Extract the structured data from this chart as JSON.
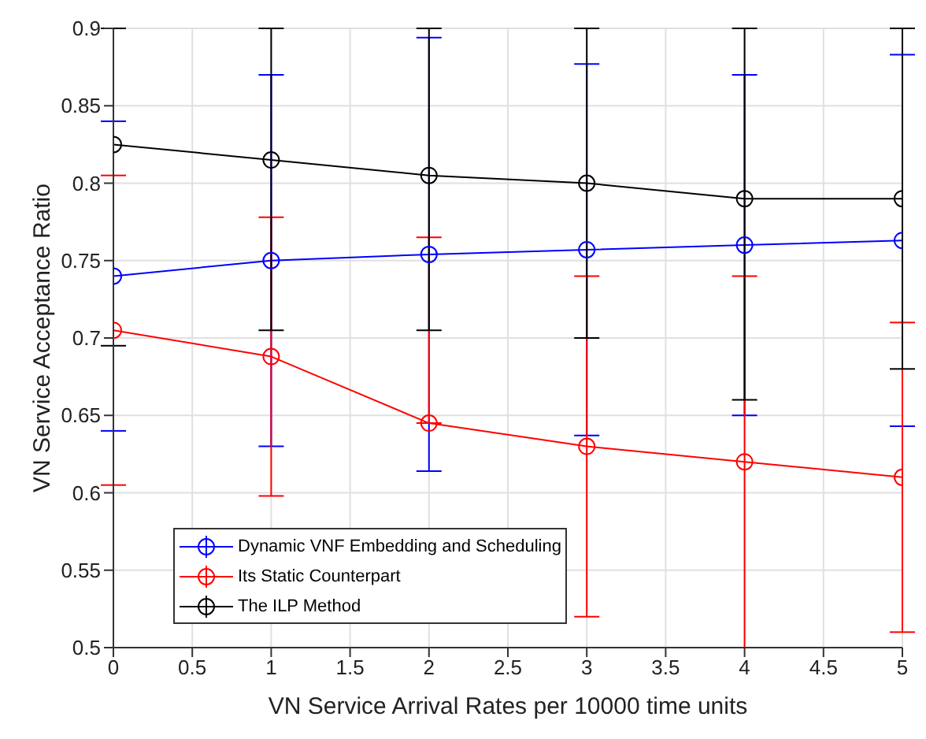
{
  "chart_data": {
    "type": "line",
    "xlabel": "VN Service Arrival Rates per 10000 time units",
    "ylabel": "VN Service Acceptance Ratio",
    "x": [
      0,
      1,
      2,
      3,
      4,
      5
    ],
    "series": [
      {
        "name": "Dynamic VNF Embedding and Scheduling",
        "color": "#0000ff",
        "values": [
          0.74,
          0.75,
          0.754,
          0.757,
          0.76,
          0.763
        ],
        "errors": [
          [
            0.64,
            0.84
          ],
          [
            0.63,
            0.87
          ],
          [
            0.614,
            0.894
          ],
          [
            0.637,
            0.877
          ],
          [
            0.65,
            0.87
          ],
          [
            0.643,
            0.883
          ]
        ]
      },
      {
        "name": "Its Static Counterpart",
        "color": "#ff0000",
        "values": [
          0.705,
          0.688,
          0.645,
          0.63,
          0.62,
          0.61
        ],
        "errors": [
          [
            0.605,
            0.805
          ],
          [
            0.598,
            0.778
          ],
          [
            0.645,
            0.765
          ],
          [
            0.52,
            0.74
          ],
          [
            0.5,
            0.74
          ],
          [
            0.51,
            0.71
          ]
        ]
      },
      {
        "name": "The ILP Method",
        "color": "#000000",
        "values": [
          0.825,
          0.815,
          0.805,
          0.8,
          0.79,
          0.79
        ],
        "errors": [
          [
            0.695,
            0.9
          ],
          [
            0.705,
            0.9
          ],
          [
            0.705,
            0.9
          ],
          [
            0.7,
            0.9
          ],
          [
            0.66,
            0.9
          ],
          [
            0.68,
            0.9
          ]
        ]
      }
    ],
    "xlim": [
      0,
      5
    ],
    "xticks": [
      0,
      0.5,
      1,
      1.5,
      2,
      2.5,
      3,
      3.5,
      4,
      4.5,
      5
    ],
    "ylim": [
      0.5,
      0.9
    ],
    "yticks": [
      0.5,
      0.55,
      0.6,
      0.65,
      0.7,
      0.75,
      0.8,
      0.85,
      0.9
    ],
    "grid": true,
    "legend": "bottom left",
    "marker": "circle",
    "line_style": "solid"
  }
}
